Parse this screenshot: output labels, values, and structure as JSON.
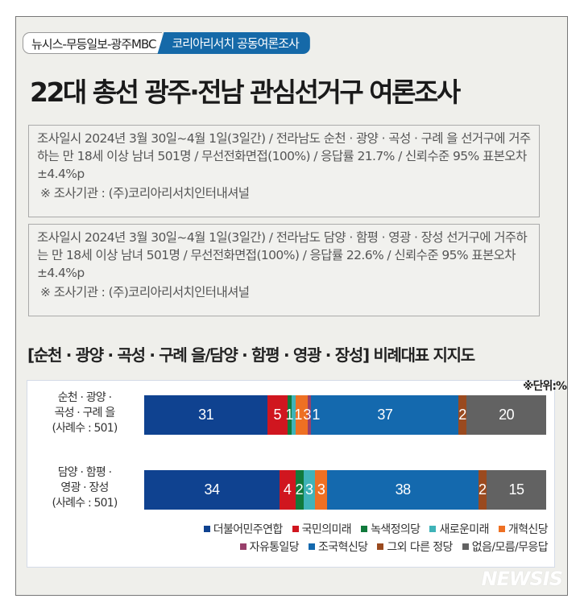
{
  "header": {
    "tag_left": "뉴시스-무등일보-광주MBC",
    "tag_right": "코리아리서치 공동여론조사",
    "title": "22대 총선 광주·전남 관심선거구 여론조사"
  },
  "surveys": [
    {
      "text": "조사일시 2024년 3월 30일~4월 1일(3일간) / 전라남도 순천 · 광양 · 곡성 · 구례 을 선거구에 거주하는 만 18세 이상 남녀 501명 / 무선전화면접(100%) / 응답률 21.7% / 신뢰수준 95% 표본오차±4.4%p",
      "org": "※  조사기관 : (주)코리아리서치인터내셔널"
    },
    {
      "text": "조사일시 2024년 3월 30일~4월 1일(3일간) / 전라남도 담양 · 함평 · 영광 · 장성 선거구에 거주하는 만 18세 이상 남녀 501명 / 무선전화면접(100%) / 응답률 22.6% / 신뢰수준 95% 표본오차±4.4%p",
      "org": "※  조사기관 : (주)코리아리서치인터내셔널"
    }
  ],
  "chart_data": {
    "type": "bar",
    "stacked": true,
    "orientation": "horizontal",
    "title": "[순천 · 광양 · 곡성 · 구례 을/담양 · 함평 · 영광 · 장성] 비례대표 지지도",
    "unit": "※단위:%",
    "categories": [
      {
        "lines": [
          "순천 · 광양 ·",
          "곡성 · 구례 을",
          "(사례수 : 501)"
        ]
      },
      {
        "lines": [
          "담양 · 함평 ·",
          "영광 · 장성",
          "(사례수 : 501)"
        ]
      }
    ],
    "series": [
      {
        "name": "더불어민주연합",
        "color": "#0f4290",
        "values": [
          31,
          34
        ]
      },
      {
        "name": "국민의미래",
        "color": "#d0161f",
        "values": [
          5,
          4
        ]
      },
      {
        "name": "녹색정의당",
        "color": "#117a3c",
        "values": [
          1,
          2
        ]
      },
      {
        "name": "새로운미래",
        "color": "#3fb3b8",
        "values": [
          1,
          3
        ]
      },
      {
        "name": "개혁신당",
        "color": "#ee7023",
        "values": [
          3,
          3
        ]
      },
      {
        "name": "자유통일당",
        "color": "#983f6b",
        "values": [
          1,
          0
        ]
      },
      {
        "name": "조국혁신당",
        "color": "#1469ae",
        "values": [
          37,
          38
        ]
      },
      {
        "name": "그외 다른 정당",
        "color": "#9a4a1f",
        "values": [
          2,
          2
        ]
      },
      {
        "name": "없음/모름/무응답",
        "color": "#626262",
        "values": [
          20,
          15
        ]
      }
    ],
    "legend_placement": "bottom-right"
  },
  "watermark": "NEWSIS"
}
